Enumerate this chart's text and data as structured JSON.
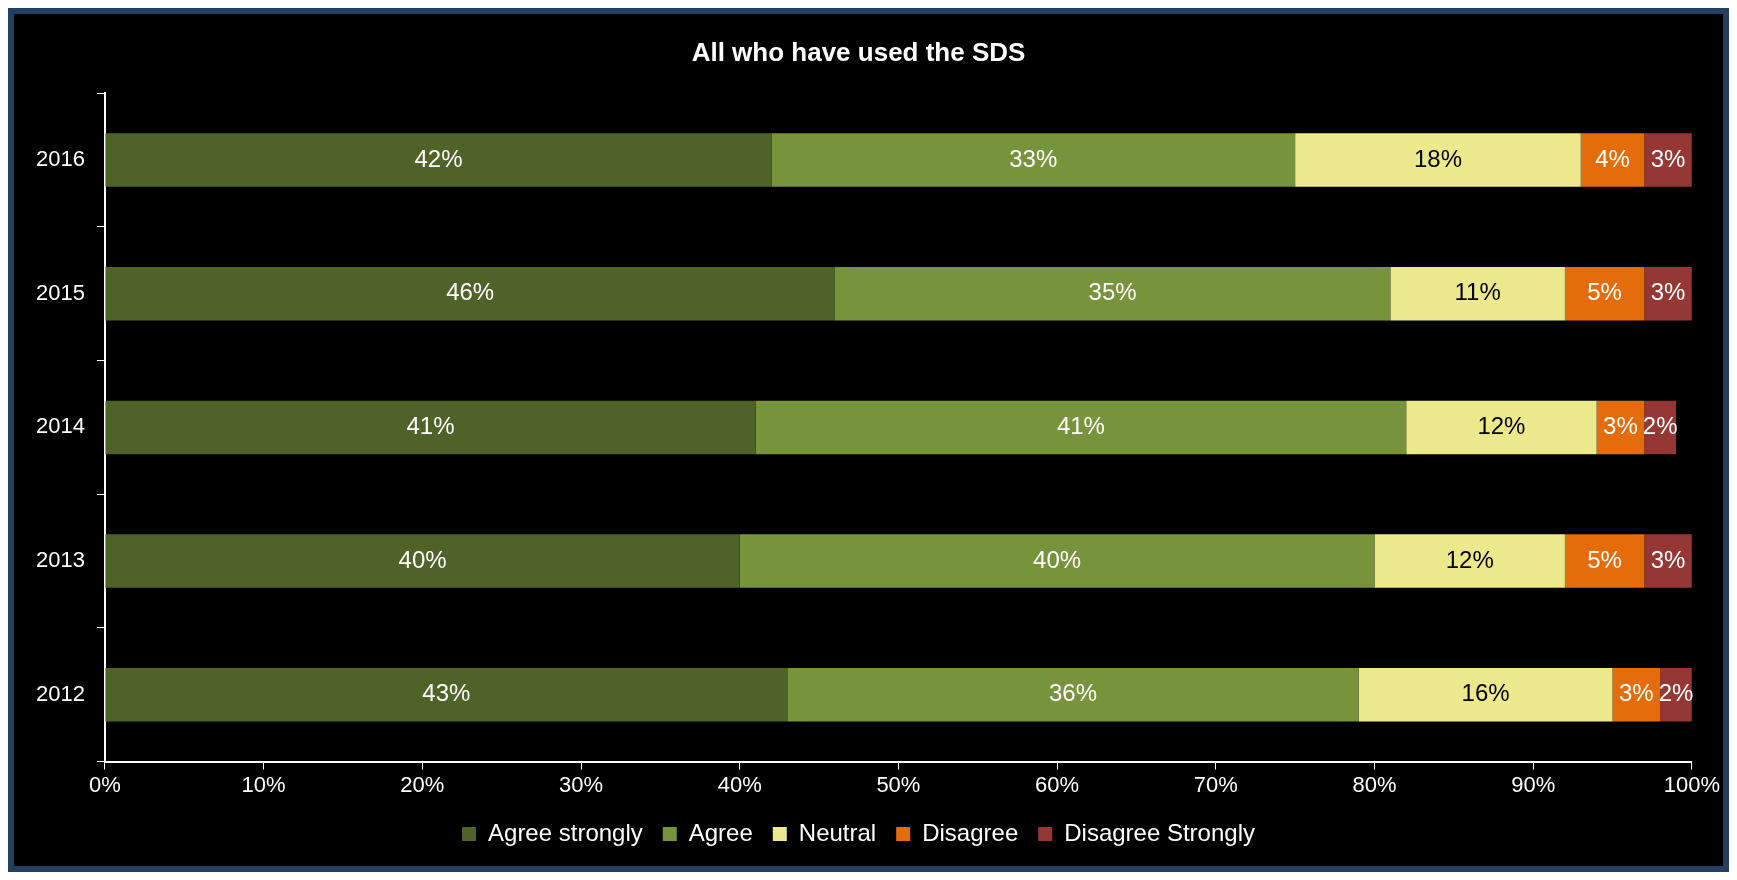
{
  "chart_data": {
    "type": "bar",
    "orientation": "horizontal",
    "stacked": true,
    "title": "All who have used the SDS",
    "categories": [
      "2016",
      "2015",
      "2014",
      "2013",
      "2012"
    ],
    "series": [
      {
        "name": "Agree strongly",
        "color": "#4f6228",
        "values": [
          42,
          46,
          41,
          40,
          43
        ],
        "value_labels": [
          "42%",
          "46%",
          "41%",
          "40%",
          "43%"
        ]
      },
      {
        "name": "Agree",
        "color": "#77933c",
        "values": [
          33,
          35,
          41,
          40,
          36
        ],
        "value_labels": [
          "33%",
          "35%",
          "41%",
          "40%",
          "36%"
        ]
      },
      {
        "name": "Neutral",
        "color": "#ebe98c",
        "values": [
          18,
          11,
          12,
          12,
          16
        ],
        "value_labels": [
          "18%",
          "11%",
          "12%",
          "12%",
          "16%"
        ]
      },
      {
        "name": "Disagree",
        "color": "#e46c0a",
        "values": [
          4,
          5,
          3,
          5,
          3
        ],
        "value_labels": [
          "4%",
          "5%",
          "3%",
          "5%",
          "3%"
        ]
      },
      {
        "name": "Disagree Strongly",
        "color": "#953735",
        "values": [
          3,
          3,
          2,
          3,
          2
        ],
        "value_labels": [
          "3%",
          "3%",
          "2%",
          "3%",
          "2%"
        ]
      }
    ],
    "xlim": [
      0,
      100
    ],
    "xticks": [
      {
        "value": 0,
        "label": "0%"
      },
      {
        "value": 10,
        "label": "10%"
      },
      {
        "value": 20,
        "label": "20%"
      },
      {
        "value": 30,
        "label": "30%"
      },
      {
        "value": 40,
        "label": "40%"
      },
      {
        "value": 50,
        "label": "50%"
      },
      {
        "value": 60,
        "label": "60%"
      },
      {
        "value": 70,
        "label": "70%"
      },
      {
        "value": 80,
        "label": "80%"
      },
      {
        "value": 90,
        "label": "90%"
      },
      {
        "value": 100,
        "label": "100%"
      }
    ],
    "grid": false,
    "legend": "bottom"
  }
}
